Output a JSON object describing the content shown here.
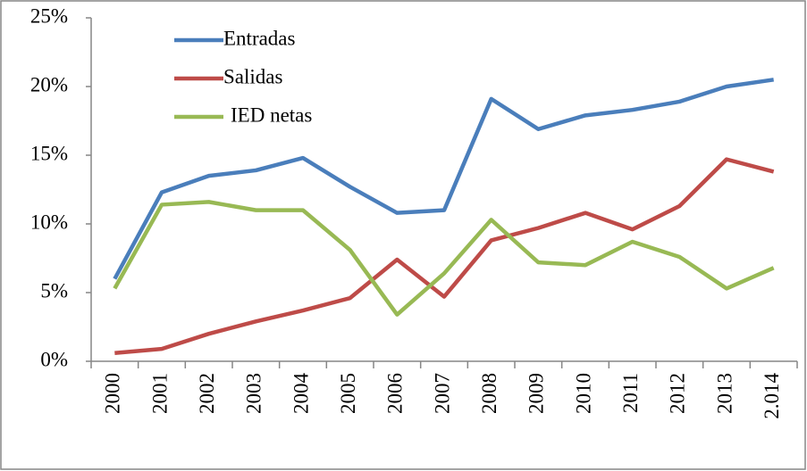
{
  "chart_data": {
    "type": "line",
    "categories": [
      "2000",
      "2001",
      "2002",
      "2003",
      "2004",
      "2005",
      "2006",
      "2007",
      "2008",
      "2009",
      "2010",
      "2011",
      "2012",
      "2013",
      "2.014"
    ],
    "series": [
      {
        "name": "Entradas",
        "color": "#4a7ebb",
        "values": [
          6.0,
          12.3,
          13.5,
          13.9,
          14.8,
          12.7,
          10.8,
          11.0,
          19.1,
          16.9,
          17.9,
          18.3,
          18.9,
          20.0,
          20.5
        ]
      },
      {
        "name": "Salidas",
        "color": "#be4b48",
        "values": [
          0.6,
          0.9,
          2.0,
          2.9,
          3.7,
          4.6,
          7.4,
          4.7,
          8.8,
          9.7,
          10.8,
          9.6,
          11.3,
          14.7,
          13.8
        ]
      },
      {
        "name": "IED netas",
        "color": "#98b954",
        "values": [
          5.3,
          11.4,
          11.6,
          11.0,
          11.0,
          8.1,
          3.4,
          6.4,
          10.3,
          7.2,
          7.0,
          8.7,
          7.6,
          5.3,
          6.8
        ]
      }
    ],
    "ylim": [
      0,
      25
    ],
    "yticks": [
      {
        "value": 0,
        "label": "0%"
      },
      {
        "value": 5,
        "label": "5%"
      },
      {
        "value": 10,
        "label": "10%"
      },
      {
        "value": 15,
        "label": "15%"
      },
      {
        "value": 20,
        "label": "20%"
      },
      {
        "value": 25,
        "label": "25%"
      }
    ],
    "legend": "top-left",
    "grid": false
  }
}
